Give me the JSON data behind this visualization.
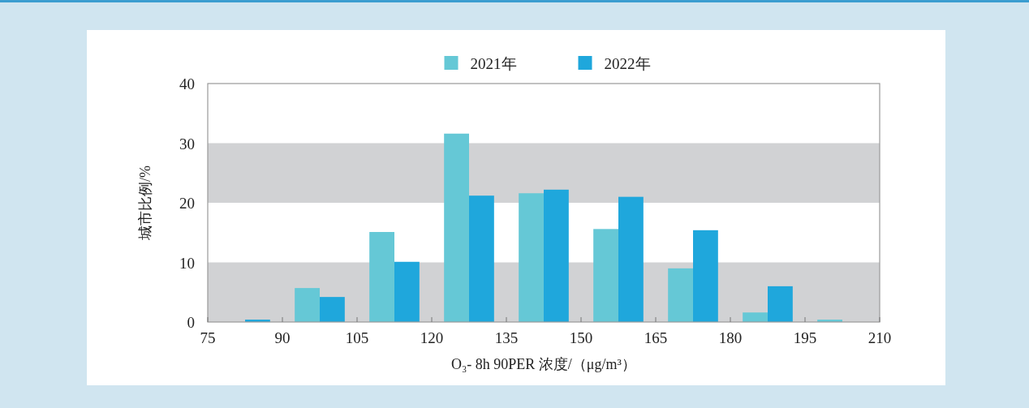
{
  "chart_data": {
    "type": "histogram",
    "xlabel": "O₃- 8h 90PER  浓度/（μg/m³）",
    "ylabel": "城市比例/%",
    "bins": [
      75,
      90,
      105,
      120,
      135,
      150,
      165,
      180,
      195,
      210
    ],
    "series": [
      {
        "name": "2021年",
        "color": "#65c8d6",
        "values": [
          0,
          5.7,
          15.1,
          31.6,
          21.6,
          15.6,
          9.0,
          1.6,
          0.4
        ]
      },
      {
        "name": "2022年",
        "color": "#1fa7dc",
        "values": [
          0.4,
          4.2,
          10.1,
          21.2,
          22.2,
          21.0,
          15.4,
          6.0,
          0
        ]
      }
    ],
    "xlim": [
      75,
      210
    ],
    "xticks": [
      75,
      90,
      105,
      120,
      135,
      150,
      165,
      180,
      195,
      210
    ],
    "ylim": [
      0,
      40
    ],
    "yticks": [
      0,
      10,
      20,
      30,
      40
    ],
    "bands": [
      {
        "axis": "y",
        "from": 0,
        "to": 10,
        "color": "#d1d2d4"
      },
      {
        "axis": "y",
        "from": 20,
        "to": 30,
        "color": "#d1d2d4"
      }
    ],
    "legend": "top"
  }
}
